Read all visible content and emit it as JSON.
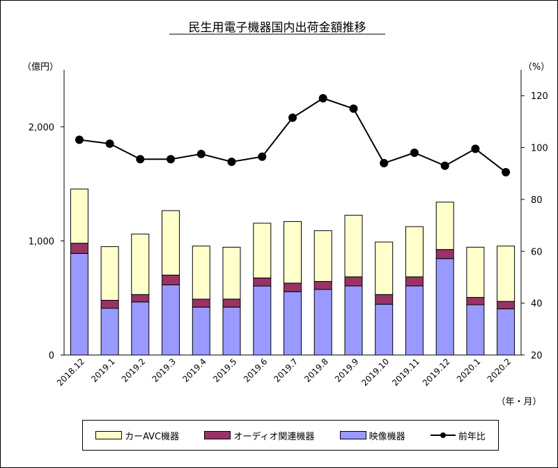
{
  "chart_data": {
    "type": "bar",
    "title": "民生用電子機器国内出荷金額推移",
    "ylabel_left": "（億円）",
    "ylabel_right": "（%）",
    "xlabel": "（年・月）",
    "ylim": [
      0,
      2500
    ],
    "y2lim": [
      20,
      130
    ],
    "yticks": [
      "0",
      "1,000",
      "2,000"
    ],
    "y2ticks": [
      "20",
      "40",
      "60",
      "80",
      "100",
      "120"
    ],
    "grid": false,
    "legend_position": "bottom",
    "categories": [
      "2018.12",
      "2019.1",
      "2019.2",
      "2019.3",
      "2019.4",
      "2019.5",
      "2019.6",
      "2019.7",
      "2019.8",
      "2019.9",
      "2019.10",
      "2019.11",
      "2019.12",
      "2020.1",
      "2020.2"
    ],
    "series": [
      {
        "name": "映像機器",
        "kind": "bar",
        "color": "#9999ff",
        "values": [
          890,
          410,
          465,
          615,
          420,
          420,
          605,
          555,
          575,
          605,
          445,
          605,
          845,
          440,
          405
        ]
      },
      {
        "name": "オーディオ関連機器",
        "kind": "bar",
        "color": "#993366",
        "values": [
          90,
          70,
          65,
          85,
          70,
          70,
          70,
          75,
          70,
          80,
          85,
          80,
          80,
          65,
          65
        ]
      },
      {
        "name": "カーAVC機器",
        "kind": "bar",
        "color": "#ffffcc",
        "values": [
          475,
          470,
          530,
          565,
          465,
          455,
          480,
          540,
          445,
          540,
          460,
          440,
          415,
          440,
          485
        ]
      },
      {
        "name": "前年比",
        "kind": "line",
        "axis": "right",
        "color": "#000000",
        "values": [
          103,
          101.5,
          95.5,
          95.5,
          97.5,
          94.5,
          96.5,
          111.5,
          119,
          115,
          94,
          98,
          93,
          99.5,
          90.5
        ]
      }
    ]
  }
}
